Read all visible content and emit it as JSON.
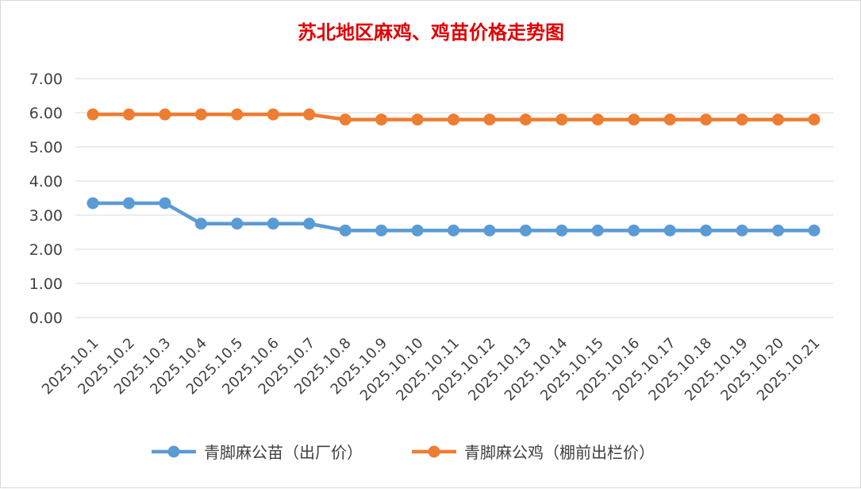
{
  "chart_data": {
    "type": "line",
    "title": "苏北地区麻鸡、鸡苗价格走势图",
    "xlabel": "",
    "ylabel": "",
    "ylim": [
      0,
      7
    ],
    "ytick_labels": [
      "0.00",
      "1.00",
      "2.00",
      "3.00",
      "4.00",
      "5.00",
      "6.00",
      "7.00"
    ],
    "grid": true,
    "legend_position": "bottom",
    "categories": [
      "2025.10.1",
      "2025.10.2",
      "2025.10.3",
      "2025.10.4",
      "2025.10.5",
      "2025.10.6",
      "2025.10.7",
      "2025.10.8",
      "2025.10.9",
      "2025.10.10",
      "2025.10.11",
      "2025.10.12",
      "2025.10.13",
      "2025.10.14",
      "2025.10.15",
      "2025.10.16",
      "2025.10.17",
      "2025.10.18",
      "2025.10.19",
      "2025.10.20",
      "2025.10.21"
    ],
    "series": [
      {
        "name": "青脚麻公苗（出厂价）",
        "color": "#5b9bd5",
        "values": [
          3.35,
          3.35,
          3.35,
          2.75,
          2.75,
          2.75,
          2.75,
          2.55,
          2.55,
          2.55,
          2.55,
          2.55,
          2.55,
          2.55,
          2.55,
          2.55,
          2.55,
          2.55,
          2.55,
          2.55,
          2.55
        ]
      },
      {
        "name": "青脚麻公鸡（棚前出栏价）",
        "color": "#ed7d31",
        "values": [
          5.95,
          5.95,
          5.95,
          5.95,
          5.95,
          5.95,
          5.95,
          5.8,
          5.8,
          5.8,
          5.8,
          5.8,
          5.8,
          5.8,
          5.8,
          5.8,
          5.8,
          5.8,
          5.8,
          5.8,
          5.8
        ]
      }
    ]
  }
}
